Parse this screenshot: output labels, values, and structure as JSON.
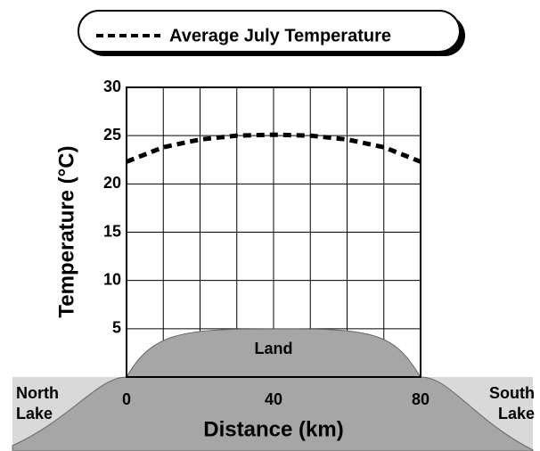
{
  "chart_data": {
    "type": "line",
    "x": [
      0,
      10,
      20,
      30,
      40,
      50,
      60,
      70,
      80
    ],
    "series": [
      {
        "name": "Average July Temperature",
        "color": "#000000",
        "values": [
          22.3,
          23.8,
          24.6,
          25.0,
          25.1,
          25.0,
          24.6,
          23.8,
          22.3
        ]
      }
    ],
    "xlim": [
      0,
      80
    ],
    "xticks": [
      0,
      40,
      80
    ],
    "ylim": [
      0,
      30
    ],
    "yticks": [
      5,
      10,
      15,
      20,
      25,
      30
    ],
    "xlabel": "Distance (km)",
    "ylabel": "Temperature (°C)",
    "grid": true,
    "legend": "top",
    "annotations": {
      "land": "Land",
      "north_lake": [
        "North",
        "Lake"
      ],
      "south_lake": [
        "South",
        "Lake"
      ]
    }
  }
}
